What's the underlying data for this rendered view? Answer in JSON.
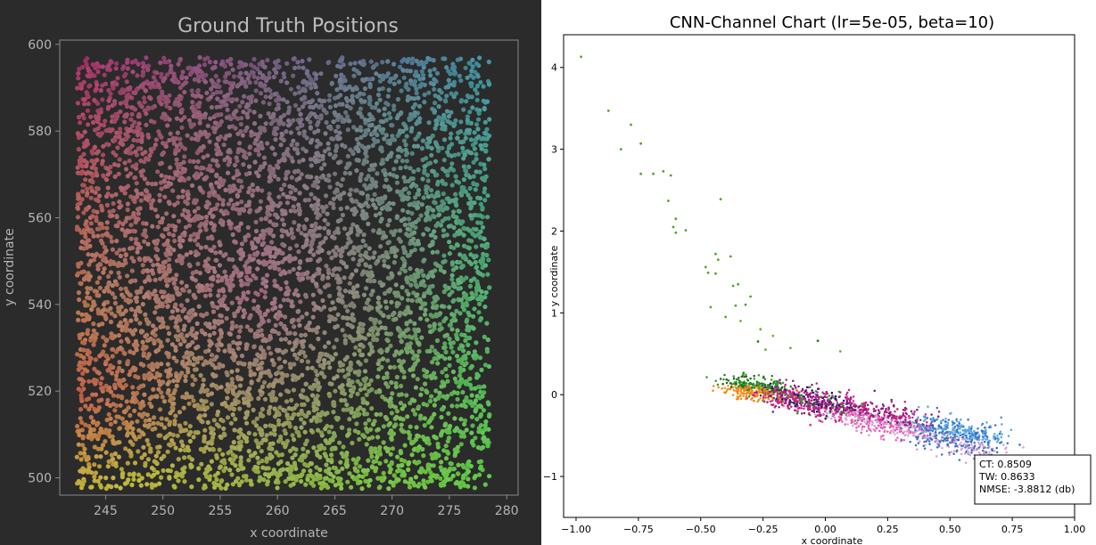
{
  "chart_data": [
    {
      "type": "scatter",
      "title": "Ground Truth Positions",
      "xlabel": "x coordinate",
      "ylabel": "y coordinate",
      "xlim": [
        241,
        281
      ],
      "ylim": [
        496,
        601
      ],
      "xticks": [
        245,
        250,
        255,
        260,
        265,
        270,
        275,
        280
      ],
      "yticks": [
        500,
        520,
        540,
        560,
        580,
        600
      ],
      "xtick_labels": [
        "245",
        "250",
        "255",
        "260",
        "265",
        "270",
        "275",
        "280"
      ],
      "ytick_labels": [
        "500",
        "520",
        "540",
        "560",
        "580",
        "600"
      ],
      "background": "#2b2b2b",
      "grid": false,
      "point_distribution": {
        "x_range": [
          242.5,
          278.5
        ],
        "y_range": [
          497.5,
          597.0
        ],
        "approx_count": 6000
      },
      "corner_colors": {
        "bottom_left": "#c7b23a",
        "bottom_right": "#5cc644",
        "top_left": "#a8326a",
        "top_right": "#3f8fa0",
        "center": "#b04fa0",
        "left_mid": "#c03a4e"
      }
    },
    {
      "type": "scatter",
      "title": "CNN-Channel Chart (lr=5e-05, beta=10)",
      "xlabel": "x coordinate",
      "ylabel": "y coordinate",
      "xlim": [
        -1.05,
        1.0
      ],
      "ylim": [
        -1.5,
        4.4
      ],
      "xticks": [
        -1.0,
        -0.75,
        -0.5,
        -0.25,
        0.0,
        0.25,
        0.5,
        0.75,
        1.0
      ],
      "yticks": [
        -1,
        0,
        1,
        2,
        3,
        4
      ],
      "xtick_labels": [
        "−1.00",
        "−0.75",
        "−0.50",
        "−0.25",
        "0.00",
        "0.25",
        "0.50",
        "0.75",
        "1.00"
      ],
      "ytick_labels": [
        "−1",
        "0",
        "1",
        "2",
        "3",
        "4"
      ],
      "background": "#ffffff",
      "grid": false,
      "outlier_points": [
        [
          -0.98,
          4.13
        ],
        [
          -0.87,
          3.47
        ],
        [
          -0.78,
          3.3
        ],
        [
          -0.74,
          3.07
        ],
        [
          -0.82,
          3.0
        ],
        [
          -0.74,
          2.7
        ],
        [
          -0.69,
          2.7
        ],
        [
          -0.65,
          2.73
        ],
        [
          -0.62,
          2.68
        ],
        [
          -0.63,
          2.37
        ],
        [
          -0.42,
          2.39
        ],
        [
          -0.6,
          2.15
        ],
        [
          -0.61,
          2.05
        ],
        [
          -0.6,
          1.98
        ],
        [
          -0.56,
          2.01
        ],
        [
          -0.44,
          1.72
        ],
        [
          -0.43,
          1.65
        ],
        [
          -0.38,
          1.69
        ],
        [
          -0.48,
          1.56
        ],
        [
          -0.47,
          1.49
        ],
        [
          -0.44,
          1.48
        ],
        [
          -0.35,
          1.35
        ],
        [
          -0.37,
          1.33
        ],
        [
          -0.3,
          1.2
        ],
        [
          -0.32,
          1.1
        ],
        [
          -0.46,
          1.07
        ],
        [
          -0.36,
          1.09
        ],
        [
          -0.4,
          0.95
        ],
        [
          -0.34,
          0.9
        ],
        [
          -0.26,
          0.8
        ],
        [
          -0.27,
          0.65
        ],
        [
          -0.21,
          0.72
        ],
        [
          -0.24,
          0.55
        ],
        [
          -0.03,
          0.66
        ],
        [
          0.06,
          0.53
        ],
        [
          -0.14,
          0.57
        ],
        [
          -0.06,
          -0.37
        ]
      ],
      "cluster_trend": {
        "start": [
          -0.35,
          0.12
        ],
        "end": [
          0.68,
          -0.62
        ]
      },
      "cluster_colors": [
        "#2f9a2a",
        "#1e6b1a",
        "#f08a1a",
        "#c9238a",
        "#7a1f78",
        "#e85bb0",
        "#d9a0d6",
        "#3a74c4",
        "#5aa9e6",
        "#1a1a6a"
      ],
      "metrics": {
        "ct": "CT: 0.8509",
        "tw": "TW: 0.8633",
        "nmse": "NMSE: -3.8812 (db)"
      }
    }
  ]
}
